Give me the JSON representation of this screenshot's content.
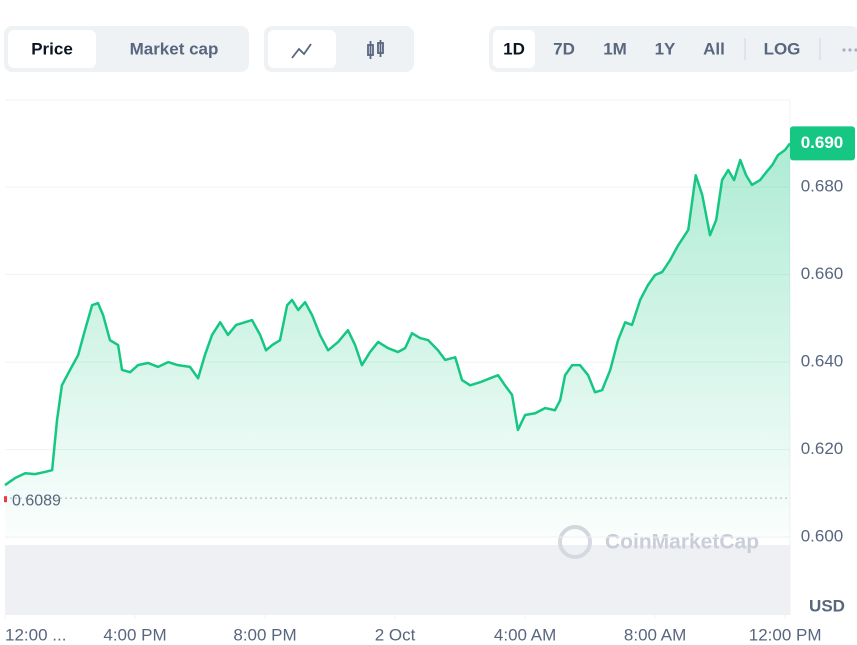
{
  "toolbar": {
    "data_tabs": [
      "Price",
      "Market cap"
    ],
    "ranges": [
      "1D",
      "7D",
      "1M",
      "1Y",
      "All",
      "LOG"
    ]
  },
  "chart_data": {
    "type": "line",
    "x": [
      0,
      0.31,
      0.62,
      0.92,
      1.23,
      1.45,
      1.6,
      1.75,
      2,
      2.25,
      2.46,
      2.68,
      2.86,
      3.02,
      3.23,
      3.48,
      3.6,
      3.85,
      4.09,
      4.4,
      4.71,
      5.02,
      5.32,
      5.69,
      5.94,
      6.15,
      6.37,
      6.62,
      6.86,
      7.11,
      7.38,
      7.6,
      7.85,
      8.03,
      8.22,
      8.46,
      8.68,
      8.83,
      9.02,
      9.23,
      9.45,
      9.69,
      9.94,
      10.25,
      10.55,
      10.77,
      10.98,
      11.23,
      11.48,
      11.78,
      12.09,
      12.31,
      12.52,
      12.77,
      13.02,
      13.32,
      13.54,
      13.85,
      14.06,
      14.31,
      14.62,
      14.92,
      15.17,
      15.38,
      15.6,
      15.78,
      16,
      16.31,
      16.62,
      16.92,
      17.08,
      17.23,
      17.45,
      17.69,
      17.94,
      18.15,
      18.37,
      18.62,
      18.86,
      19.08,
      19.29,
      19.54,
      19.78,
      20,
      20.22,
      20.46,
      20.71,
      21.02,
      21.25,
      21.45,
      21.69,
      21.88,
      22.06,
      22.25,
      22.43,
      22.62,
      22.8,
      22.98,
      23.23,
      23.42,
      23.6,
      23.78,
      24,
      24.15
    ],
    "series": [
      {
        "name": "Price",
        "color": "#16c784",
        "values": [
          0.6119,
          0.6135,
          0.6146,
          0.6144,
          0.6149,
          0.6153,
          0.6267,
          0.6347,
          0.6382,
          0.6416,
          0.6473,
          0.653,
          0.6535,
          0.6507,
          0.645,
          0.6439,
          0.6382,
          0.6377,
          0.6393,
          0.6398,
          0.6389,
          0.64,
          0.6393,
          0.6389,
          0.6363,
          0.6416,
          0.6462,
          0.6491,
          0.6462,
          0.6485,
          0.6491,
          0.6496,
          0.6462,
          0.6427,
          0.6439,
          0.645,
          0.653,
          0.6542,
          0.6519,
          0.6537,
          0.6507,
          0.6462,
          0.6427,
          0.6446,
          0.6473,
          0.6439,
          0.6393,
          0.6423,
          0.6446,
          0.6432,
          0.6423,
          0.6432,
          0.6466,
          0.6455,
          0.645,
          0.6427,
          0.6405,
          0.6411,
          0.6359,
          0.6347,
          0.6354,
          0.6363,
          0.637,
          0.6347,
          0.6325,
          0.6245,
          0.6279,
          0.6283,
          0.6295,
          0.629,
          0.6313,
          0.637,
          0.6393,
          0.6393,
          0.637,
          0.6331,
          0.6336,
          0.6382,
          0.645,
          0.6491,
          0.6485,
          0.6542,
          0.6576,
          0.6599,
          0.6606,
          0.6633,
          0.6667,
          0.6702,
          0.6827,
          0.6782,
          0.669,
          0.6725,
          0.6816,
          0.6839,
          0.6816,
          0.6862,
          0.6827,
          0.6805,
          0.6816,
          0.6834,
          0.685,
          0.6873,
          0.6885,
          0.69
        ]
      }
    ],
    "last_value_label": "0.690",
    "open_price": 0.6089,
    "xlim": [
      0,
      24.15
    ],
    "xticks": [
      {
        "value": 0,
        "label": "12:00 ..."
      },
      {
        "value": 4,
        "label": "4:00 PM"
      },
      {
        "value": 8,
        "label": "8:00 PM"
      },
      {
        "value": 12,
        "label": "2 Oct"
      },
      {
        "value": 16,
        "label": "4:00 AM"
      },
      {
        "value": 20,
        "label": "8:00 AM"
      },
      {
        "value": 24,
        "label": "12:00 PM"
      }
    ],
    "ylim": [
      0.5822,
      0.6999
    ],
    "yticks": [
      {
        "value": 0.6,
        "label": "0.600"
      },
      {
        "value": 0.62,
        "label": "0.620"
      },
      {
        "value": 0.64,
        "label": "0.640"
      },
      {
        "value": 0.66,
        "label": "0.660"
      },
      {
        "value": 0.68,
        "label": "0.680"
      }
    ],
    "y_unit": "USD",
    "watermark": "CoinMarketCap",
    "grid": true
  }
}
